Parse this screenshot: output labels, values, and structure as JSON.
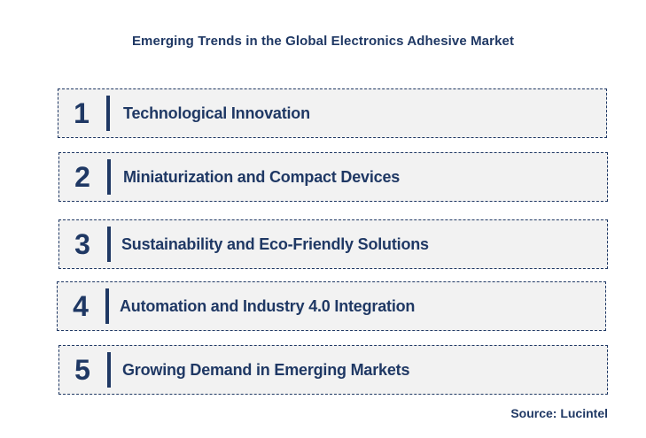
{
  "title": "Emerging Trends in the Global Electronics Adhesive Market",
  "trends": [
    {
      "number": "1",
      "label": "Technological Innovation"
    },
    {
      "number": "2",
      "label": "Miniaturization and Compact Devices"
    },
    {
      "number": "3",
      "label": "Sustainability and Eco-Friendly Solutions"
    },
    {
      "number": "4",
      "label": "Automation and Industry 4.0 Integration"
    },
    {
      "number": "5",
      "label": "Growing Demand in Emerging Markets"
    }
  ],
  "source": "Source: Lucintel",
  "colors": {
    "text": "#1f3864",
    "box_fill": "#f2f2f2",
    "border": "#1f3864"
  }
}
